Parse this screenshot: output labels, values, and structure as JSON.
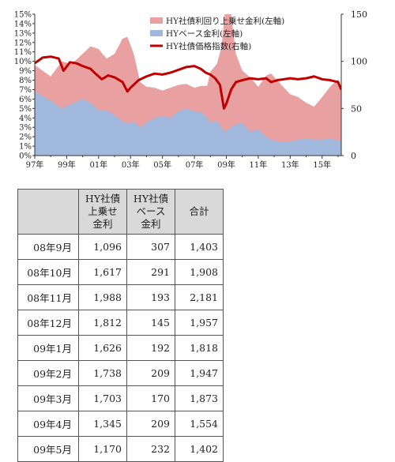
{
  "chart_data": {
    "type": "area",
    "x_ticks": [
      "97年",
      "99年",
      "01年",
      "03年",
      "05年",
      "07年",
      "09年",
      "11年",
      "13年",
      "15年"
    ],
    "y_left_ticks": [
      "0%",
      "1%",
      "2%",
      "3%",
      "4%",
      "5%",
      "6%",
      "7%",
      "8%",
      "9%",
      "10%",
      "11%",
      "12%",
      "13%",
      "14%",
      "15%"
    ],
    "y_right_ticks": [
      "0",
      "50",
      "100",
      "150"
    ],
    "ylim_left": [
      0,
      15
    ],
    "ylim_right": [
      0,
      150
    ],
    "xlim": [
      1997.0,
      2016.2
    ],
    "legend_position": "top-right",
    "series": [
      {
        "name": "HY社債利回り上乗せ金利(左軸)",
        "type": "area",
        "stacked": true,
        "color": "#e8a0a0",
        "x": [
          1997.0,
          1998.0,
          1998.7,
          1999.3,
          2000.0,
          2000.5,
          2001.0,
          2001.5,
          2002.0,
          2002.5,
          2002.8,
          2003.2,
          2003.6,
          2004.0,
          2004.5,
          2005.0,
          2005.5,
          2006.0,
          2006.5,
          2007.0,
          2007.4,
          2007.8,
          2008.0,
          2008.4,
          2008.7,
          2008.9,
          2009.3,
          2009.6,
          2010.0,
          2010.5,
          2011.0,
          2011.5,
          2011.8,
          2012.5,
          2013.0,
          2013.5,
          2014.0,
          2014.5,
          2015.0,
          2015.5,
          2016.0,
          2016.2
        ],
        "y": [
          2.8,
          2.6,
          5.0,
          4.2,
          4.8,
          6.0,
          6.5,
          5.5,
          6.5,
          8.8,
          9.2,
          7.2,
          4.8,
          3.8,
          3.2,
          2.7,
          3.2,
          2.8,
          2.6,
          2.5,
          2.8,
          3.4,
          5.4,
          6.0,
          8.5,
          17.0,
          12.0,
          7.5,
          5.5,
          5.8,
          4.5,
          6.5,
          7.0,
          6.0,
          5.0,
          4.5,
          3.8,
          3.5,
          4.5,
          5.5,
          6.5,
          5.5
        ]
      },
      {
        "name": "HYベース金利(左軸)",
        "type": "area",
        "stacked": true,
        "color": "#a0b8dc",
        "x": [
          1997.0,
          1998.0,
          1998.7,
          1999.3,
          2000.0,
          2000.5,
          2001.0,
          2001.5,
          2002.0,
          2002.5,
          2002.8,
          2003.2,
          2003.6,
          2004.0,
          2004.5,
          2005.0,
          2005.5,
          2006.0,
          2006.5,
          2007.0,
          2007.4,
          2007.8,
          2008.0,
          2008.4,
          2008.7,
          2008.9,
          2009.3,
          2009.6,
          2010.0,
          2010.5,
          2011.0,
          2011.5,
          2011.8,
          2012.5,
          2013.0,
          2013.5,
          2014.0,
          2014.5,
          2015.0,
          2015.5,
          2016.0,
          2016.2
        ],
        "y": [
          6.8,
          5.8,
          5.0,
          5.5,
          6.0,
          5.6,
          4.8,
          4.8,
          4.3,
          3.6,
          3.4,
          3.6,
          3.0,
          3.5,
          4.0,
          4.2,
          4.0,
          4.7,
          5.0,
          4.7,
          4.6,
          4.0,
          3.5,
          3.7,
          3.0,
          2.5,
          3.0,
          3.3,
          3.5,
          2.5,
          2.8,
          2.0,
          1.7,
          1.4,
          1.5,
          1.7,
          1.8,
          1.7,
          1.7,
          1.8,
          1.6,
          1.6
        ]
      },
      {
        "name": "HY社債価格指数(右軸)",
        "type": "line",
        "axis": "right",
        "color": "#c00000",
        "x": [
          1997.0,
          1997.5,
          1998.0,
          1998.5,
          1998.8,
          1999.2,
          1999.6,
          2000.0,
          2000.5,
          2000.8,
          2001.2,
          2001.6,
          2002.0,
          2002.5,
          2002.8,
          2003.0,
          2003.5,
          2004.0,
          2004.5,
          2005.0,
          2005.5,
          2006.0,
          2006.5,
          2007.0,
          2007.4,
          2007.7,
          2008.0,
          2008.3,
          2008.6,
          2008.85,
          2009.0,
          2009.3,
          2009.6,
          2010.0,
          2010.5,
          2011.0,
          2011.5,
          2011.8,
          2012.2,
          2012.6,
          2013.0,
          2013.5,
          2014.0,
          2014.5,
          2015.0,
          2015.5,
          2016.0,
          2016.2
        ],
        "y": [
          98,
          104,
          105,
          103,
          90,
          99,
          98,
          95,
          92,
          87,
          81,
          85,
          83,
          78,
          68,
          72,
          80,
          84,
          87,
          86,
          88,
          91,
          94,
          95,
          92,
          88,
          86,
          82,
          75,
          50,
          55,
          70,
          78,
          80,
          82,
          81,
          82,
          78,
          80,
          81,
          82,
          81,
          82,
          84,
          81,
          80,
          78,
          70
        ]
      }
    ]
  },
  "table": {
    "headers": [
      "",
      "HY社債上乗せ金利",
      "HY社債ベース金利",
      "合計"
    ],
    "header_lines": [
      [
        ""
      ],
      [
        "HY社債",
        "上乗せ",
        "金利"
      ],
      [
        "HY社債",
        "ベース",
        "金利"
      ],
      [
        "合計"
      ]
    ],
    "rows": [
      [
        "08年9月",
        "1,096",
        "307",
        "1,403"
      ],
      [
        "08年10月",
        "1,617",
        "291",
        "1,908"
      ],
      [
        "08年11月",
        "1,988",
        "193",
        "2,181"
      ],
      [
        "08年12月",
        "1,812",
        "145",
        "1,957"
      ],
      [
        "09年1月",
        "1,626",
        "192",
        "1,818"
      ],
      [
        "09年2月",
        "1,738",
        "209",
        "1,947"
      ],
      [
        "09年3月",
        "1,703",
        "170",
        "1,873"
      ],
      [
        "09年4月",
        "1,345",
        "209",
        "1,554"
      ],
      [
        "09年5月",
        "1,170",
        "232",
        "1,402"
      ]
    ]
  }
}
